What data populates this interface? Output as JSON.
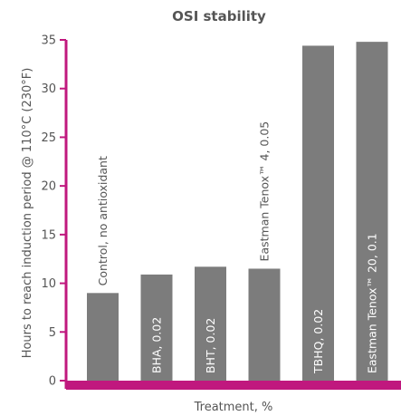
{
  "chart_data": {
    "type": "bar",
    "title": "OSI stability",
    "xlabel": "Treatment, %",
    "ylabel": "Hours to reach induction period @ 110°C (230°F)",
    "ylim": [
      0,
      35
    ],
    "yticks": [
      0,
      5,
      10,
      15,
      20,
      25,
      30,
      35
    ],
    "categories": [
      "Control, no antioxidant",
      "BHA, 0.02",
      "BHT, 0.02",
      "Eastman Tenox™ 4, 0.05",
      "TBHQ, 0.02",
      "Eastman Tenox™ 20, 0.1"
    ],
    "values": [
      9.0,
      10.9,
      11.7,
      11.5,
      34.4,
      34.8
    ],
    "grid": false,
    "colors": {
      "bar": "#7c7c7c",
      "axis": "#c0187e",
      "text": "#555555",
      "label_inside": "#ffffff"
    }
  }
}
